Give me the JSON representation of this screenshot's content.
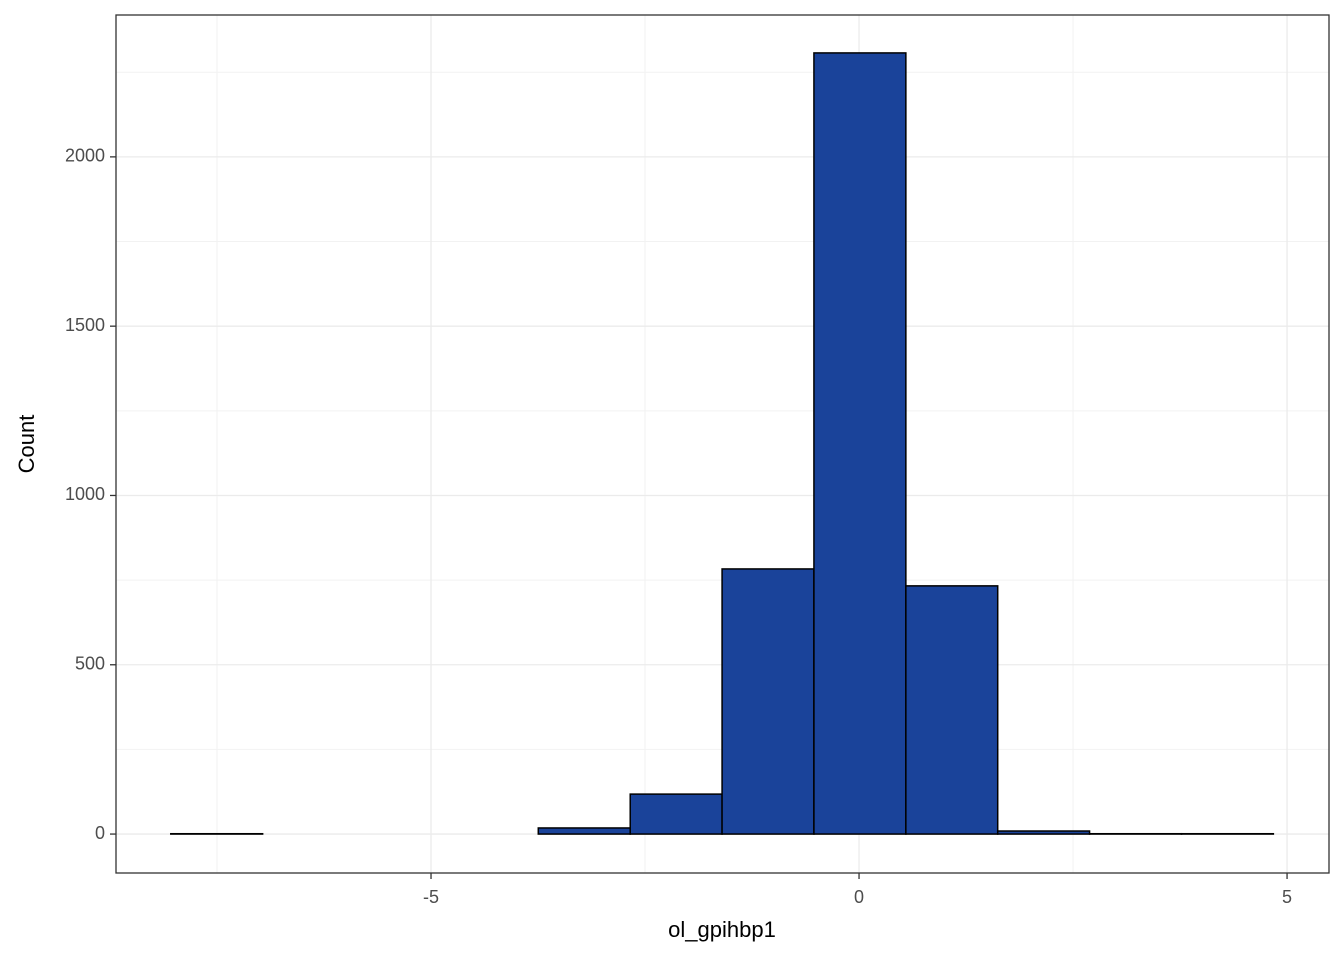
{
  "chart_data": {
    "type": "histogram",
    "x_label": "ol_gpihbp1",
    "y_label": "Count",
    "bins": [
      -8.04,
      -6.967,
      -5.893,
      -4.82,
      -3.747,
      -2.673,
      -1.6,
      -0.527,
      0.547,
      1.62,
      2.693,
      3.767,
      4.84
    ],
    "values": [
      1,
      0,
      0,
      0,
      18,
      118,
      783,
      2307,
      733,
      9,
      1,
      1
    ],
    "color": "#1a439a",
    "xlim": [
      -8.68,
      5.49
    ],
    "ylim": [
      -115,
      2419
    ],
    "xticks": [
      -5,
      0,
      5
    ],
    "yticks": [
      0,
      500,
      1000,
      1500,
      2000
    ],
    "minor_xticks": [
      -7.5,
      -2.5,
      2.5
    ],
    "minor_yticks": [
      250,
      750,
      1250,
      1750,
      2250
    ],
    "grid": true
  }
}
